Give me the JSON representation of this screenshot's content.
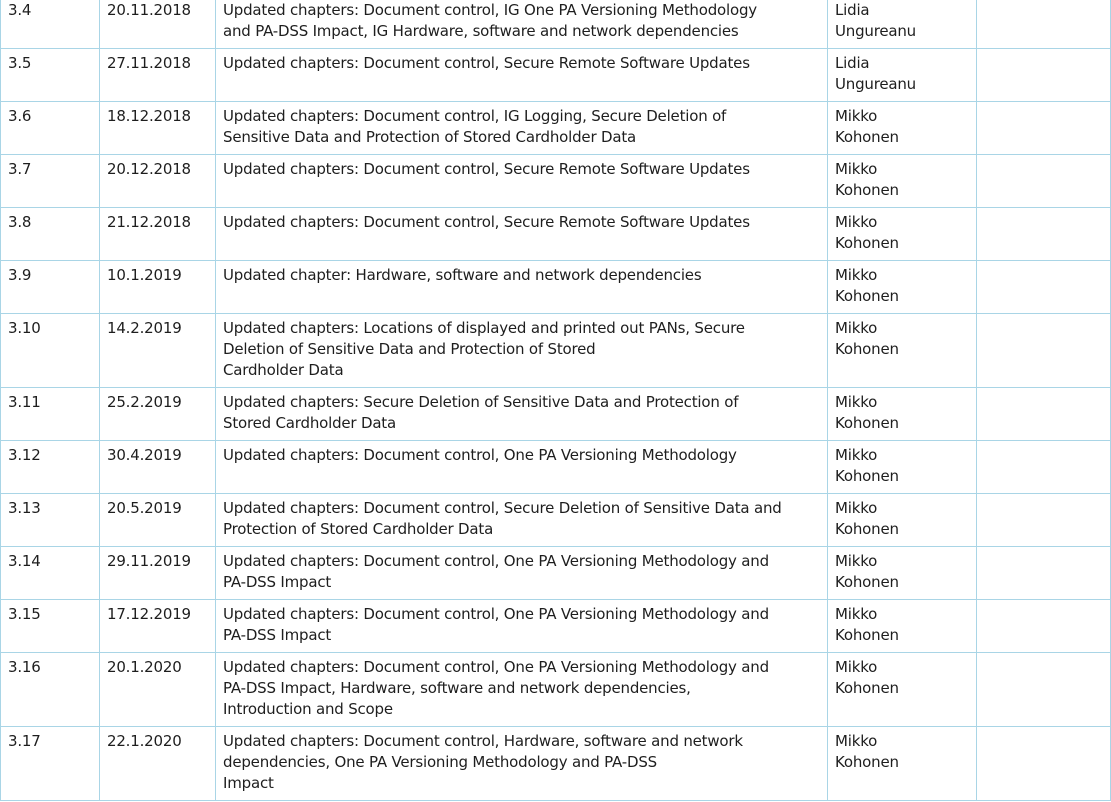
{
  "revision_table": {
    "rows": [
      {
        "version": "3.4",
        "date": "20.11.2018",
        "description": "Updated chapters: Document control, IG One PA Versioning Methodology\nand PA-DSS Impact, IG Hardware, software and network dependencies",
        "author": "Lidia\nUngureanu",
        "notes": ""
      },
      {
        "version": "3.5",
        "date": "27.11.2018",
        "description": "Updated chapters: Document control, Secure Remote Software Updates",
        "author": "Lidia\nUngureanu",
        "notes": ""
      },
      {
        "version": "3.6",
        "date": "18.12.2018",
        "description": "Updated chapters: Document control, IG Logging, Secure Deletion of\nSensitive Data and Protection of Stored Cardholder Data",
        "author": "Mikko\nKohonen",
        "notes": ""
      },
      {
        "version": "3.7",
        "date": "20.12.2018",
        "description": "Updated chapters: Document control, Secure Remote Software Updates",
        "author": "Mikko\nKohonen",
        "notes": ""
      },
      {
        "version": "3.8",
        "date": "21.12.2018",
        "description": "Updated chapters: Document control, Secure Remote Software Updates",
        "author": "Mikko\nKohonen",
        "notes": ""
      },
      {
        "version": "3.9",
        "date": "10.1.2019",
        "description": "Updated chapter: Hardware, software and network dependencies",
        "author": "Mikko\nKohonen",
        "notes": ""
      },
      {
        "version": "3.10",
        "date": "14.2.2019",
        "description": "Updated chapters: Locations of displayed and printed out PANs, Secure\nDeletion of Sensitive Data and Protection of Stored\n Cardholder Data",
        "author": "Mikko\nKohonen",
        "notes": ""
      },
      {
        "version": "3.11",
        "date": "25.2.2019",
        "description": "Updated chapters: Secure Deletion of Sensitive Data and Protection of\nStored Cardholder Data",
        "author": "Mikko\nKohonen",
        "notes": ""
      },
      {
        "version": "3.12",
        "date": "30.4.2019",
        "description": "Updated chapters: Document control, One PA Versioning Methodology",
        "author": "Mikko\nKohonen",
        "notes": ""
      },
      {
        "version": "3.13",
        "date": "20.5.2019",
        "description": "Updated chapters: Document control, Secure Deletion of Sensitive Data and\nProtection of Stored Cardholder Data",
        "author": "Mikko\nKohonen",
        "notes": ""
      },
      {
        "version": "3.14",
        "date": "29.11.2019",
        "description": "Updated chapters: Document control, One PA Versioning Methodology and\nPA-DSS Impact",
        "author": "Mikko\nKohonen",
        "notes": ""
      },
      {
        "version": "3.15",
        "date": "17.12.2019",
        "description": "Updated chapters: Document control, One PA Versioning Methodology and\nPA-DSS Impact",
        "author": "Mikko\nKohonen",
        "notes": ""
      },
      {
        "version": "3.16",
        "date": "20.1.2020",
        "description": "Updated chapters: Document control, One PA Versioning Methodology and\nPA-DSS Impact, Hardware, software and network dependencies,\nIntroduction and Scope",
        "author": "Mikko\nKohonen",
        "notes": ""
      },
      {
        "version": "3.17",
        "date": "22.1.2020",
        "description": "Updated chapters: Document control, Hardware, software and network\ndependencies, One PA Versioning Methodology and PA-DSS\nImpact",
        "author": "Mikko\nKohonen",
        "notes": ""
      }
    ]
  }
}
